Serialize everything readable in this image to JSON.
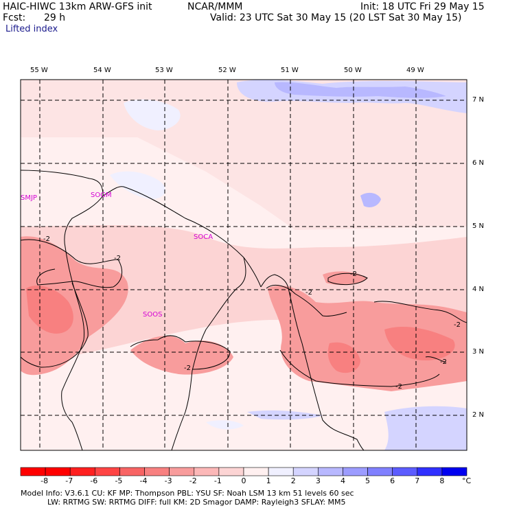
{
  "header": {
    "model": "HAIC-HIWC 13km ARW-GFS init",
    "source": "NCAR/MMM",
    "init": "Init: 18 UTC Fri 29 May 15",
    "fcst_label": "Fcst:",
    "fcst_value": "29 h",
    "valid": "Valid: 23 UTC Sat 30 May 15 (20 LST Sat 30 May 15)",
    "field": "Lifted index"
  },
  "map": {
    "lon_labels": [
      "55 W",
      "54 W",
      "53 W",
      "52 W",
      "51 W",
      "50 W",
      "49 W"
    ],
    "lat_labels": [
      "7 N",
      "6 N",
      "5 N",
      "4 N",
      "3 N",
      "2 N"
    ],
    "station_labels": [
      "SMJP",
      "SOGM",
      "SOCA",
      "SOOS"
    ],
    "contour_labels": [
      "-2",
      "-2",
      "-2",
      "-2",
      "-2",
      "-2",
      "-2",
      "-2"
    ]
  },
  "colorbar": {
    "ticks": [
      "-8",
      "-7",
      "-6",
      "-5",
      "-4",
      "-3",
      "-2",
      "-1",
      "0",
      "1",
      "2",
      "3",
      "4",
      "5",
      "6",
      "7",
      "8"
    ],
    "unit": "°C",
    "colors": [
      "#ff0000",
      "#ff2020",
      "#ff4444",
      "#f86464",
      "#f88080",
      "#f89c9c",
      "#fcb8b8",
      "#fcd4d4",
      "#fff0f0",
      "#f0f0ff",
      "#d4d4ff",
      "#b8b8ff",
      "#9c9cff",
      "#8080ff",
      "#5c5cff",
      "#3030ff",
      "#0000f0"
    ]
  },
  "footer": {
    "line1": "Model Info: V3.6.1     CU: KF     MP: Thompson     PBL: YSU     SF: Noah LSM     13 km     51 levels     60 sec",
    "line2": "LW: RRTMG     SW: RRTMG  DIFF: full    KM: 2D Smagor  DAMP: Rayleigh3   SFLAY: MM5"
  }
}
